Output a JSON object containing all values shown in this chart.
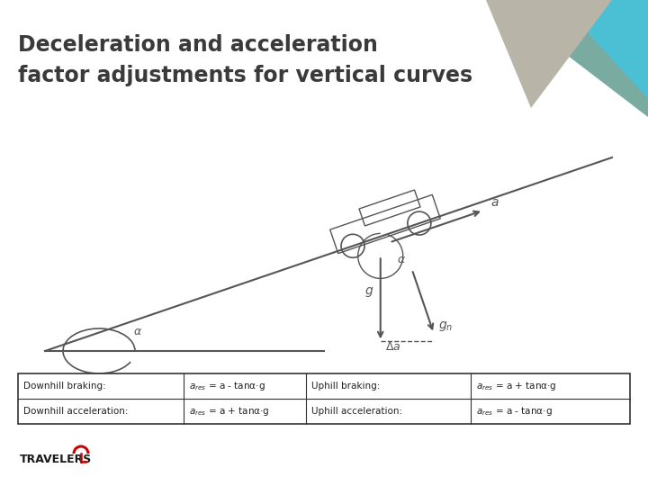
{
  "title_line1": "Deceleration and acceleration",
  "title_line2": "factor adjustments for vertical curves",
  "title_fontsize": 17,
  "title_fontweight": "bold",
  "title_color": "#3a3a3a",
  "bg_color": "#ffffff",
  "header_teal_dark": "#7aaba0",
  "header_teal_bright": "#4bbfd4",
  "header_gray": "#b8b5a8",
  "table_rows": [
    [
      "Downhill braking:",
      "ares = a - tanα·g",
      "Uphill braking:",
      "ares = a + tanα·g"
    ],
    [
      "Downhill acceleration:",
      "ares = a + tanα·g",
      "Uphill acceleration:",
      "ares = a - tanα·g"
    ]
  ],
  "travelers_text": "TRAVELERS",
  "travelers_color": "#1a1a1a",
  "travelers_fontsize": 9,
  "travelers_fontweight": "bold"
}
